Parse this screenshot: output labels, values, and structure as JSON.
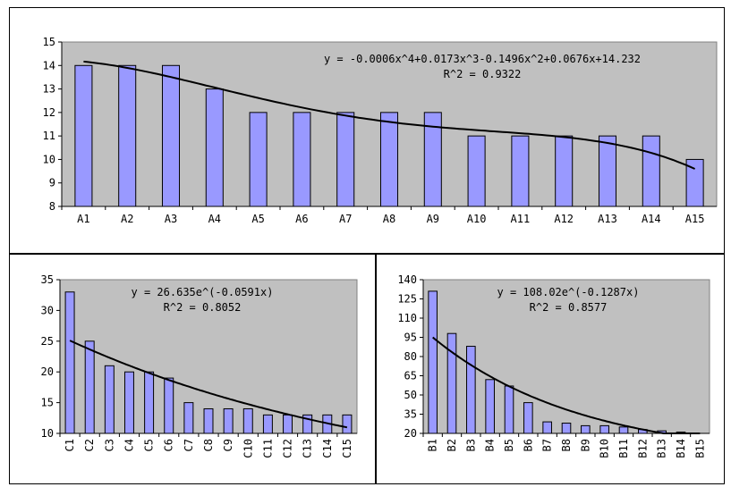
{
  "chart_data": [
    {
      "type": "bar",
      "categories": [
        "A1",
        "A2",
        "A3",
        "A4",
        "A5",
        "A6",
        "A7",
        "A8",
        "A9",
        "A10",
        "A11",
        "A12",
        "A13",
        "A14",
        "A15"
      ],
      "values": [
        14,
        14,
        14,
        13,
        12,
        12,
        12,
        12,
        12,
        11,
        11,
        11,
        11,
        11,
        10
      ],
      "ylim": [
        8,
        15
      ],
      "yticks": [
        8,
        9,
        10,
        11,
        12,
        13,
        14,
        15
      ],
      "trendline": {
        "kind": "poly4",
        "coef": [
          -0.0006,
          0.0173,
          -0.1496,
          0.0676,
          14.232
        ]
      },
      "equation": "y = -0.0006x^4+0.0173x^3-0.1496x^2+0.0676x+14.232",
      "r2": "R^2 = 0.9322",
      "bar_color": "#9999ff",
      "plot_bg": "#c0c0c0",
      "label_rotation": "horizontal"
    },
    {
      "type": "bar",
      "categories": [
        "C1",
        "C2",
        "C3",
        "C4",
        "C5",
        "C6",
        "C7",
        "C8",
        "C9",
        "C10",
        "C11",
        "C12",
        "C13",
        "C14",
        "C15"
      ],
      "values": [
        33,
        25,
        21,
        20,
        20,
        19,
        15,
        14,
        14,
        14,
        13,
        13,
        13,
        13,
        13
      ],
      "ylim": [
        10,
        35
      ],
      "yticks": [
        10,
        15,
        20,
        25,
        30,
        35
      ],
      "trendline": {
        "kind": "exp",
        "a": 26.635,
        "b": -0.0591
      },
      "equation": "y = 26.635e^(-0.0591x)",
      "r2": "R^2 = 0.8052",
      "bar_color": "#9999ff",
      "plot_bg": "#c0c0c0",
      "label_rotation": "vertical"
    },
    {
      "type": "bar",
      "categories": [
        "B1",
        "B2",
        "B3",
        "B4",
        "B5",
        "B6",
        "B7",
        "B8",
        "B9",
        "B10",
        "B11",
        "B12",
        "B13",
        "B14",
        "B15"
      ],
      "values": [
        131,
        98,
        88,
        62,
        57,
        44,
        29,
        28,
        26,
        26,
        25,
        23,
        22,
        21,
        20
      ],
      "ylim": [
        20,
        140
      ],
      "yticks": [
        20,
        35,
        50,
        65,
        80,
        95,
        110,
        125,
        140
      ],
      "trendline": {
        "kind": "exp",
        "a": 108.02,
        "b": -0.1287
      },
      "equation": "y = 108.02e^(-0.1287x)",
      "r2": "R^2 = 0.8577",
      "bar_color": "#9999ff",
      "plot_bg": "#c0c0c0",
      "label_rotation": "vertical"
    }
  ]
}
